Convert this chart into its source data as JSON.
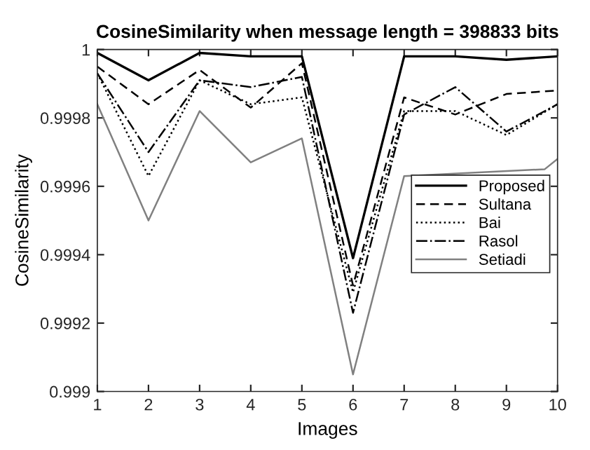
{
  "chart_data": {
    "type": "line",
    "title": "CosineSimilarity when message length = 398833 bits",
    "xlabel": "Images",
    "ylabel": "CosineSimilarity",
    "x": [
      1,
      2,
      3,
      4,
      5,
      6,
      7,
      8,
      9,
      10
    ],
    "xlim": [
      1,
      10
    ],
    "xticks": [
      1,
      2,
      3,
      4,
      5,
      6,
      7,
      8,
      9,
      10
    ],
    "ylim": [
      0.999,
      1
    ],
    "yticks": [
      {
        "value": 0.999,
        "label": "0.999"
      },
      {
        "value": 0.9992,
        "label": "0.9992"
      },
      {
        "value": 0.9994,
        "label": "0.9994"
      },
      {
        "value": 0.9996,
        "label": "0.9996"
      },
      {
        "value": 0.9998,
        "label": "0.9998"
      },
      {
        "value": 1,
        "label": "1"
      }
    ],
    "grid": false,
    "legend": "right",
    "series": [
      {
        "name": "Proposed",
        "color": "#000000",
        "line_style": "solid",
        "values": [
          0.99999,
          0.99991,
          0.99999,
          0.99998,
          0.99998,
          0.99939,
          0.99998,
          0.99998,
          0.99997,
          0.99998
        ]
      },
      {
        "name": "Sultana",
        "color": "#000000",
        "line_style": "dashed",
        "values": [
          0.99995,
          0.99984,
          0.99994,
          0.99983,
          0.99996,
          0.99931,
          0.99986,
          0.99981,
          0.99987,
          0.99988
        ]
      },
      {
        "name": "Bai",
        "color": "#000000",
        "line_style": "dotted",
        "values": [
          0.99993,
          0.99963,
          0.99991,
          0.99984,
          0.99986,
          0.99929,
          0.99982,
          0.99982,
          0.99975,
          0.99984
        ]
      },
      {
        "name": "Rasol",
        "color": "#000000",
        "line_style": "dashdot",
        "values": [
          0.99993,
          0.9997,
          0.99991,
          0.99989,
          0.99992,
          0.99923,
          0.99981,
          0.99989,
          0.99976,
          0.99984
        ]
      },
      {
        "name": "Setiadi",
        "color": "#808080",
        "line_style": "solid",
        "x": [
          1,
          2,
          3,
          4,
          5,
          6,
          7,
          9.75,
          10
        ],
        "values": [
          0.99984,
          0.9995,
          0.99982,
          0.99967,
          0.99974,
          0.99905,
          0.99963,
          0.99965,
          0.99968
        ]
      }
    ]
  }
}
